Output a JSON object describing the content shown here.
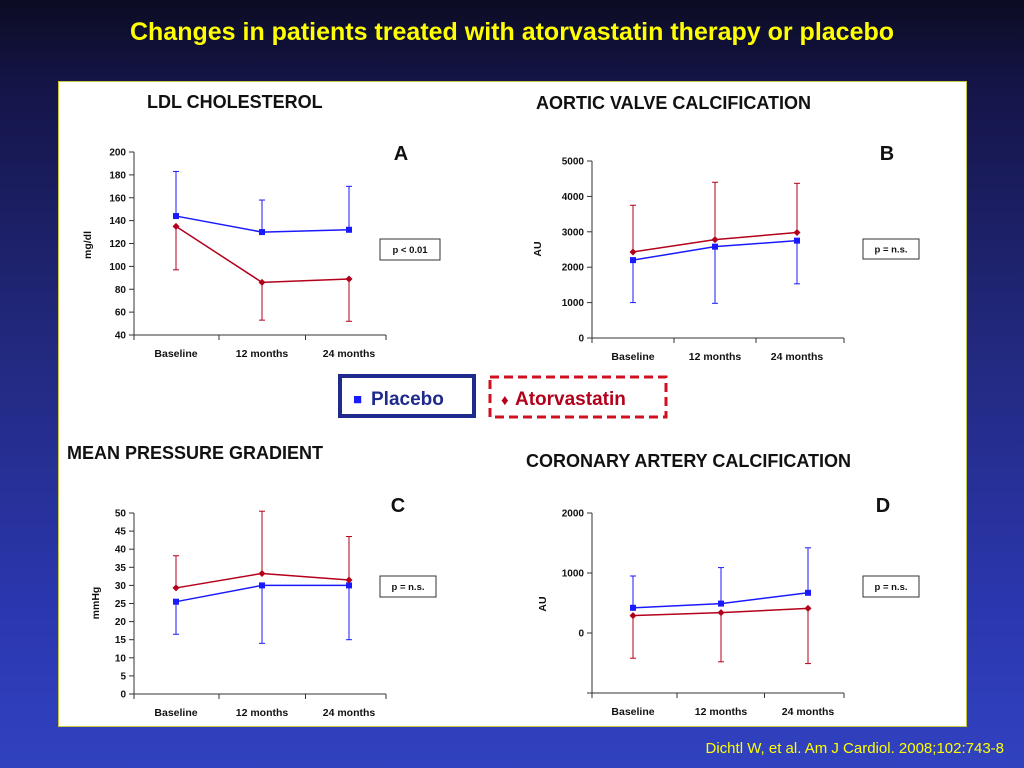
{
  "slide": {
    "title": "Changes in patients treated with atorvastatin therapy or placebo",
    "citation": "Dichtl W, et al. Am J Cardiol. 2008;102:743-8"
  },
  "legend": {
    "placebo_label": "Placebo",
    "placebo_marker": "■",
    "placebo_color": "#1a1aff",
    "atorvastatin_label": "Atorvastatin",
    "atorvastatin_marker": "♦",
    "atorvastatin_color": "#b3001b"
  },
  "chart_data": [
    {
      "type": "line",
      "heading": "LDL CHOLESTEROL",
      "letter": "A",
      "ylabel": "mg/dl",
      "ylim": [
        40,
        200
      ],
      "yticks": [
        40,
        60,
        80,
        100,
        120,
        140,
        160,
        180,
        200
      ],
      "categories": [
        "Baseline",
        "12 months",
        "24 months"
      ],
      "pvalue": "p < 0.01",
      "series": [
        {
          "name": "Placebo",
          "values": [
            144,
            130,
            132
          ],
          "err_upper": [
            183,
            158,
            170
          ],
          "err_lower": [
            144,
            130,
            132
          ]
        },
        {
          "name": "Atorvastatin",
          "values": [
            135,
            86,
            89
          ],
          "err_upper": [
            135,
            86,
            89
          ],
          "err_lower": [
            97,
            53,
            52
          ]
        }
      ]
    },
    {
      "type": "line",
      "heading": "AORTIC VALVE CALCIFICATION",
      "letter": "B",
      "ylabel": "AU",
      "ylim": [
        0,
        5000
      ],
      "yticks": [
        0,
        1000,
        2000,
        3000,
        4000,
        5000
      ],
      "categories": [
        "Baseline",
        "12 months",
        "24 months"
      ],
      "pvalue": "p = n.s.",
      "series": [
        {
          "name": "Placebo",
          "values": [
            2200,
            2580,
            2750
          ],
          "err_upper": [
            2200,
            2580,
            2750
          ],
          "err_lower": [
            1000,
            980,
            1530
          ]
        },
        {
          "name": "Atorvastatin",
          "values": [
            2430,
            2780,
            2980
          ],
          "err_upper": [
            3750,
            4400,
            4370
          ],
          "err_lower": [
            2430,
            2780,
            2980
          ]
        }
      ]
    },
    {
      "type": "line",
      "heading": "MEAN PRESSURE GRADIENT",
      "letter": "C",
      "ylabel": "mmHg",
      "ylim": [
        0,
        50
      ],
      "yticks": [
        0,
        5,
        10,
        15,
        20,
        25,
        30,
        35,
        40,
        45,
        50
      ],
      "categories": [
        "Baseline",
        "12 months",
        "24 months"
      ],
      "pvalue": "p = n.s.",
      "series": [
        {
          "name": "Placebo",
          "values": [
            25.5,
            30,
            30
          ],
          "err_upper": [
            25.5,
            30,
            30
          ],
          "err_lower": [
            16.5,
            14,
            15
          ]
        },
        {
          "name": "Atorvastatin",
          "values": [
            29.3,
            33.3,
            31.5
          ],
          "err_upper": [
            38.2,
            50.5,
            43.5
          ],
          "err_lower": [
            29.3,
            33.3,
            31.5
          ]
        }
      ]
    },
    {
      "type": "line",
      "heading": "CORONARY ARTERY CALCIFICATION",
      "letter": "D",
      "ylabel": "AU",
      "ylim": [
        -1000,
        2000
      ],
      "yticks": [
        -1000,
        0,
        1000,
        2000
      ],
      "ytick_labels": [
        "",
        "0",
        "1000",
        "2000"
      ],
      "categories": [
        "Baseline",
        "12 months",
        "24 months"
      ],
      "pvalue": "p = n.s.",
      "series": [
        {
          "name": "Placebo",
          "values": [
            420,
            490,
            670
          ],
          "err_upper": [
            950,
            1090,
            1420
          ],
          "err_lower": [
            420,
            490,
            670
          ]
        },
        {
          "name": "Atorvastatin",
          "values": [
            290,
            340,
            410
          ],
          "err_upper": [
            290,
            340,
            410
          ],
          "err_lower": [
            -420,
            -480,
            -510
          ]
        }
      ]
    }
  ]
}
